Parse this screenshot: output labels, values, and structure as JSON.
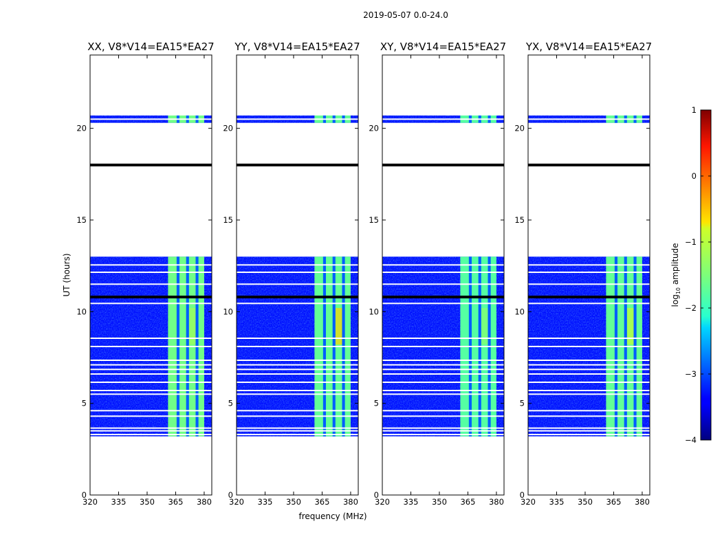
{
  "chart_data": {
    "type": "heatmap",
    "suptitle": "2019-05-07 0.0-24.0",
    "xlabel": "frequency (MHz)",
    "ylabel": "UT (hours)",
    "xlim": [
      320,
      384
    ],
    "ylim": [
      0,
      24
    ],
    "xticks": [
      "320",
      "335",
      "350",
      "365",
      "380"
    ],
    "yticks": [
      "0",
      "5",
      "10",
      "15",
      "20"
    ],
    "colorbar": {
      "label": "log10 amplitude",
      "label_base": "log",
      "label_sub": "10",
      "label_rest": " amplitude",
      "range": [
        -4,
        1
      ],
      "ticks": [
        "1",
        "0",
        "−1",
        "−2",
        "−3",
        "−4"
      ],
      "colormap": "jet"
    },
    "panels": [
      {
        "title": "XX, V8*V14=EA15*EA27",
        "band_value": -1.6,
        "hot_value": -1.2
      },
      {
        "title": "YY, V8*V14=EA15*EA27",
        "band_value": -1.7,
        "hot_value": -0.6
      },
      {
        "title": "XY, V8*V14=EA15*EA27",
        "band_value": -1.8,
        "hot_value": -1.4
      },
      {
        "title": "YX, V8*V14=EA15*EA27",
        "band_value": -1.7,
        "hot_value": -0.9
      }
    ],
    "data_segments_ut": [
      [
        3.2,
        13.0
      ],
      [
        20.3,
        20.7
      ]
    ],
    "background_log_amplitude": -3.3,
    "rfi_band_mhz": [
      361,
      380
    ],
    "rfi_gaps_mhz": [
      [
        365.5,
        367
      ],
      [
        370.5,
        372
      ],
      [
        375.5,
        377
      ]
    ],
    "flag_lines_ut": [
      3.3,
      3.5,
      3.65,
      4.3,
      4.6,
      5.5,
      5.7,
      6.15,
      6.6,
      6.85,
      7.1,
      7.35,
      8.1,
      8.55,
      10.45,
      11.5,
      12.15,
      12.55,
      20.5
    ],
    "dark_lines_ut": [
      10.8,
      18.0
    ]
  }
}
